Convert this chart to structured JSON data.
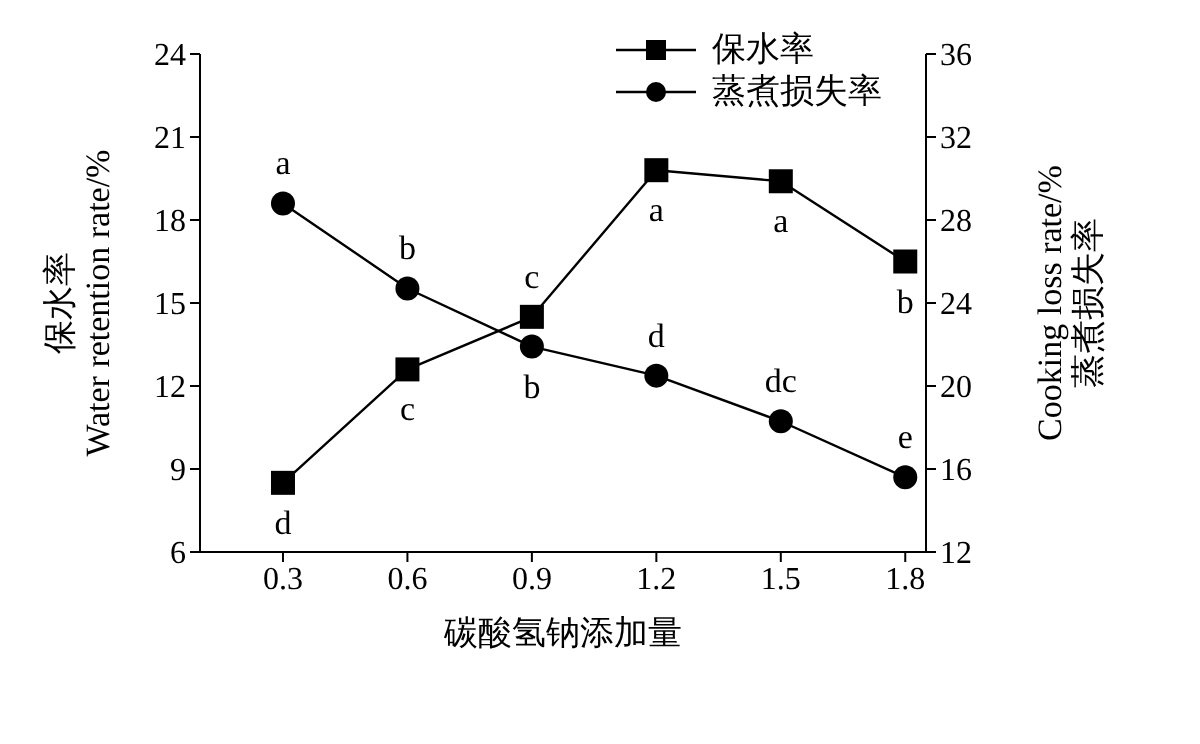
{
  "chart_data": {
    "type": "line",
    "xlabel": "碳酸氢钠添加量",
    "ylabel": "保水率\nWater retention rate/%",
    "y2label": "Cooking loss rate/%\n蒸煮损失率",
    "x": [
      0.3,
      0.6,
      0.9,
      1.2,
      1.5,
      1.8
    ],
    "xlim": [
      0.1,
      1.85
    ],
    "xticks": [
      0.3,
      0.6,
      0.9,
      1.2,
      1.5,
      1.8
    ],
    "ylim": [
      6,
      24
    ],
    "yticks": [
      6,
      9,
      12,
      15,
      18,
      21,
      24
    ],
    "y2lim": [
      12,
      36
    ],
    "y2ticks": [
      12,
      16,
      20,
      24,
      28,
      32,
      36
    ],
    "legend": "top right",
    "series": [
      {
        "name": "保水率",
        "color": "#000000",
        "marker": "square",
        "values": [
          8.5,
          12.6,
          14.5,
          19.8,
          19.4,
          16.5
        ],
        "value_labels": [
          "d",
          "c",
          "c",
          "a",
          "a",
          "b"
        ]
      },
      {
        "name": "蒸煮损失率",
        "color": "#000000",
        "marker": "circle",
        "axis": "y2",
        "values": [
          28.8,
          24.7,
          21.9,
          20.5,
          18.3,
          15.6
        ],
        "value_labels": [
          "a",
          "b",
          "b",
          "d",
          "dc",
          "e"
        ]
      }
    ]
  }
}
